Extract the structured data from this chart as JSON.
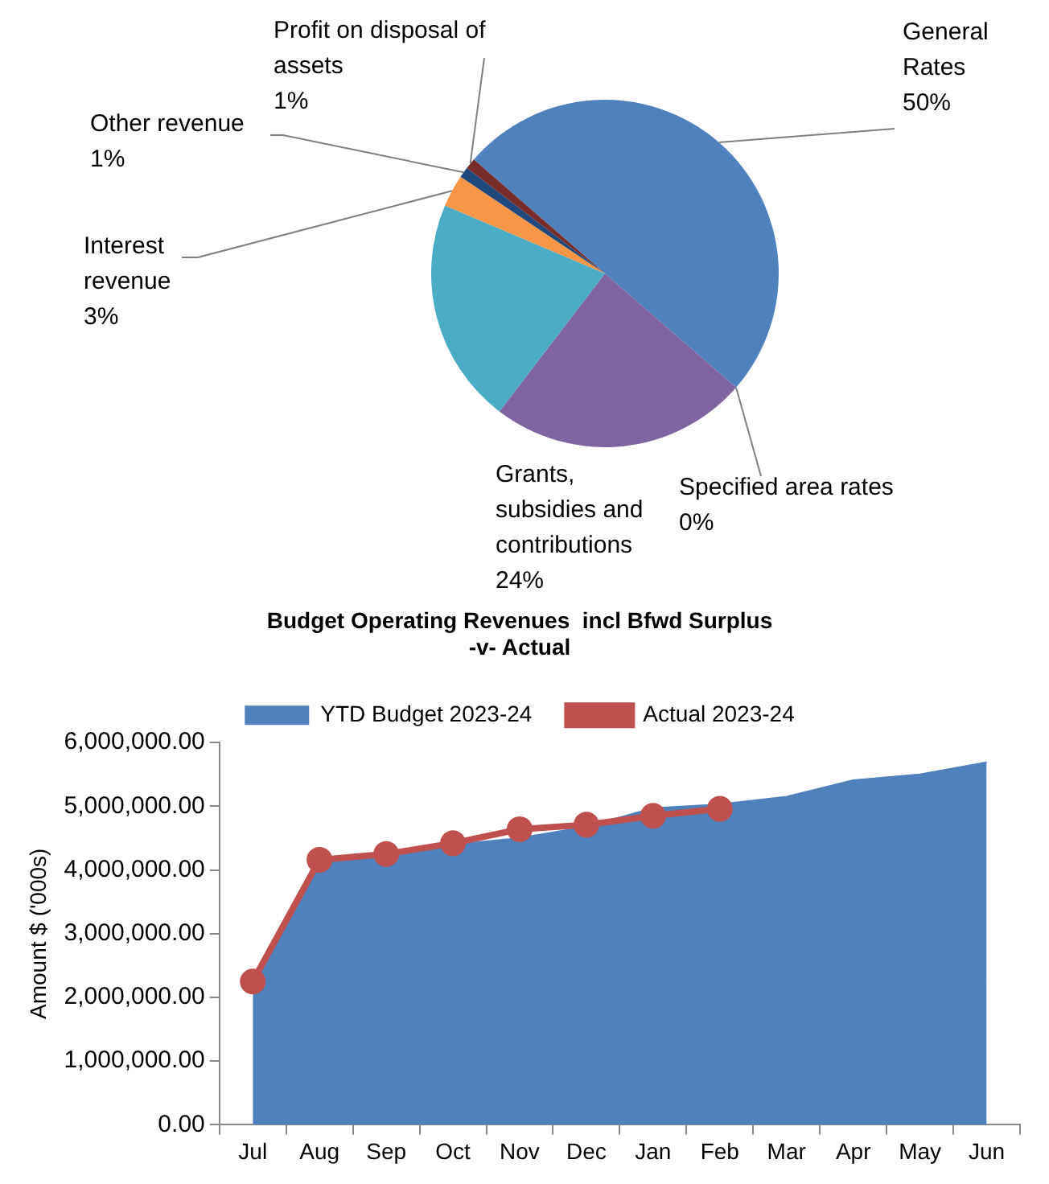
{
  "chart_data": [
    {
      "type": "pie",
      "categories": [
        "General Rates",
        "Specified area rates",
        "Grants, subsidies and contributions",
        null,
        "Interest revenue",
        "Other revenue",
        "Profit on disposal of assets"
      ],
      "values": [
        50,
        0,
        24,
        21,
        3,
        1,
        1
      ],
      "colors": [
        "#4f81bd",
        "#9bbb59",
        "#8064a2",
        "#4bacc6",
        "#f79646",
        "#1f497d",
        "#772c2a"
      ],
      "value_labels": [
        "50%",
        "0%",
        "24%",
        null,
        "3%",
        "1%",
        "1%"
      ],
      "legend": false
    },
    {
      "type": "area",
      "title": "Budget Operating Revenues  incl Bfwd Surplus -v- Actual",
      "ylabel": "Amount $ ('000s)",
      "categories": [
        "Jul",
        "Aug",
        "Sep",
        "Oct",
        "Nov",
        "Dec",
        "Jan",
        "Feb",
        "Mar",
        "Apr",
        "May",
        "Jun"
      ],
      "series": [
        {
          "name": "YTD Budget 2023-24",
          "type": "area",
          "color": "#4f81bd",
          "marker": "none",
          "values": [
            2250000,
            4100000,
            4210000,
            4400000,
            4500000,
            4680000,
            4970000,
            5030000,
            5150000,
            5410000,
            5500000,
            5690000
          ]
        },
        {
          "name": "Actual 2023-24",
          "type": "line",
          "color": "#c0504d",
          "marker": "circle",
          "values": [
            2250000,
            4160000,
            4250000,
            4420000,
            4640000,
            4710000,
            4850000,
            4960000,
            null,
            null,
            null,
            null
          ]
        }
      ],
      "ylim": [
        0,
        6000000
      ],
      "yticks": [
        {
          "value": 0,
          "label": "0.00"
        },
        {
          "value": 1000000,
          "label": "1,000,000.00"
        },
        {
          "value": 2000000,
          "label": "2,000,000.00"
        },
        {
          "value": 3000000,
          "label": "3,000,000.00"
        },
        {
          "value": 4000000,
          "label": "4,000,000.00"
        },
        {
          "value": 5000000,
          "label": "5,000,000.00"
        },
        {
          "value": 6000000,
          "label": "6,000,000.00"
        }
      ],
      "grid": false,
      "legend": "top"
    }
  ]
}
